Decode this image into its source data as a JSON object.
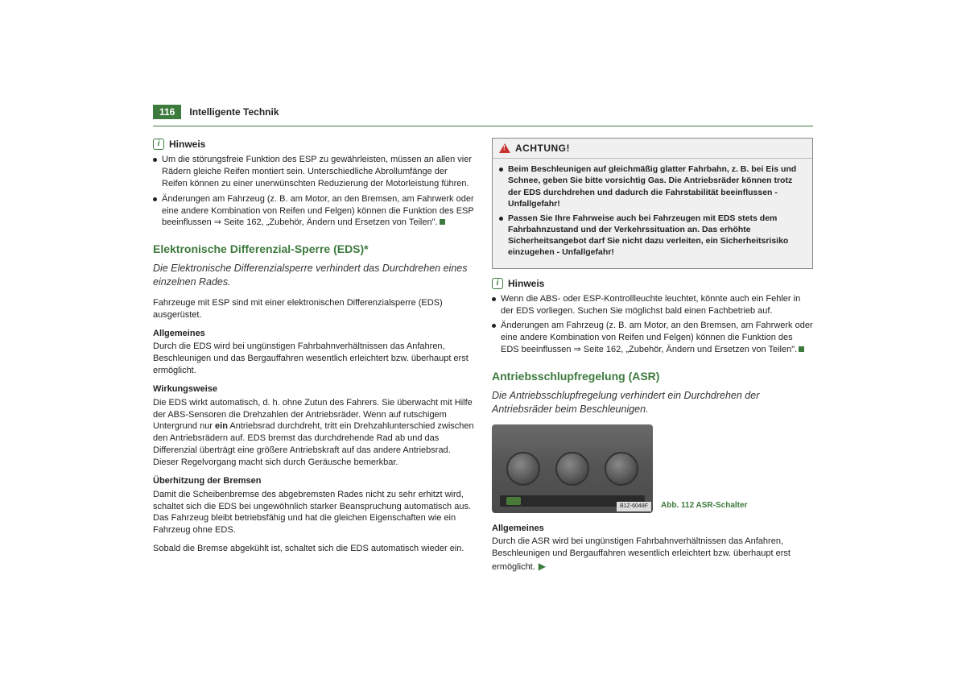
{
  "page_number": "116",
  "chapter": "Intelligente Technik",
  "colors": {
    "brand": "#3d7a3d",
    "warn": "#c93030",
    "text": "#222222",
    "box_bg": "#f0f0f0"
  },
  "left": {
    "hinweis": {
      "label": "Hinweis",
      "bullets": [
        "Um die störungsfreie Funktion des ESP zu gewährleisten, müssen an allen vier Rädern gleiche Reifen montiert sein. Unterschiedliche Abrollumfänge der Reifen können zu einer unerwünschten Reduzierung der Motorleistung führen.",
        "Änderungen am Fahrzeug (z. B. am Motor, an den Bremsen, am Fahrwerk oder eine andere Kombination von Reifen und Felgen) können die Funktion des ESP beeinflussen ⇒ Seite 162, „Zubehör, Ändern und Ersetzen von Teilen\"."
      ]
    },
    "eds": {
      "title": "Elektronische Differenzial-Sperre (EDS)*",
      "subtitle": "Die Elektronische Differenzialsperre verhindert das Durchdrehen eines einzelnen Rades.",
      "intro": "Fahrzeuge mit ESP sind mit einer elektronischen Differenzialsperre (EDS) ausgerüstet.",
      "allgemeines_head": "Allgemeines",
      "allgemeines_text": "Durch die EDS wird bei ungünstigen Fahrbahnverhältnissen das Anfahren, Beschleunigen und das Bergauffahren wesentlich erleichtert bzw. überhaupt erst ermöglicht.",
      "wirk_head": "Wirkungsweise",
      "wirk_text_pre": "Die EDS wirkt automatisch, d. h. ohne Zutun des Fahrers. Sie überwacht mit Hilfe der ABS-Sensoren die Drehzahlen der Antriebsräder. Wenn auf rutschigem Untergrund nur ",
      "wirk_bold": "ein",
      "wirk_text_post": " Antriebsrad durchdreht, tritt ein Drehzahlunterschied zwischen den Antriebsrädern auf. EDS bremst das durchdrehende Rad ab und das Differenzial überträgt eine größere Antriebskraft auf das andere Antriebsrad. Dieser Regelvorgang macht sich durch Geräusche bemerkbar.",
      "uber_head": "Überhitzung der Bremsen",
      "uber_text1": "Damit die Scheibenbremse des abgebremsten Rades nicht zu sehr erhitzt wird, schaltet sich die EDS bei ungewöhnlich starker Beanspruchung automatisch aus. Das Fahrzeug bleibt betriebsfähig und hat die gleichen Eigenschaften wie ein Fahrzeug ohne EDS.",
      "uber_text2": "Sobald die Bremse abgekühlt ist, schaltet sich die EDS automatisch wieder ein."
    }
  },
  "right": {
    "achtung": {
      "label": "ACHTUNG!",
      "bullets": [
        "Beim Beschleunigen auf gleichmäßig glatter Fahrbahn, z. B. bei Eis und Schnee, geben Sie bitte vorsichtig Gas. Die Antriebsräder können trotz der EDS durchdrehen und dadurch die Fahrstabilität beeinflussen - Unfallgefahr!",
        "Passen Sie Ihre Fahrweise auch bei Fahrzeugen mit EDS stets dem Fahrbahnzustand und der Verkehrssituation an. Das erhöhte Sicherheitsangebot darf Sie nicht dazu verleiten, ein Sicherheitsrisiko einzugehen - Unfallgefahr!"
      ]
    },
    "hinweis": {
      "label": "Hinweis",
      "bullets": [
        "Wenn die ABS- oder ESP-Kontrollleuchte leuchtet, könnte auch ein Fehler in der EDS vorliegen. Suchen Sie möglichst bald einen Fachbetrieb auf.",
        "Änderungen am Fahrzeug (z. B. am Motor, an den Bremsen, am Fahrwerk oder eine andere Kombination von Reifen und Felgen) können die Funktion des EDS beeinflussen ⇒ Seite 162, „Zubehör, Ändern und Ersetzen von Teilen\"."
      ]
    },
    "asr": {
      "title": "Antriebsschlupfregelung (ASR)",
      "subtitle": "Die Antriebsschlupfregelung verhindert ein Durchdrehen der Antriebsräder beim Beschleunigen.",
      "fig_caption": "Abb. 112  ASR-Schalter",
      "fig_overlay": "B1Z-6048F",
      "allgemeines_head": "Allgemeines",
      "allgemeines_text": "Durch die ASR wird bei ungünstigen Fahrbahnverhältnissen das Anfahren, Beschleunigen und Bergauffahren wesentlich erleichtert bzw. überhaupt erst ermöglicht."
    }
  }
}
